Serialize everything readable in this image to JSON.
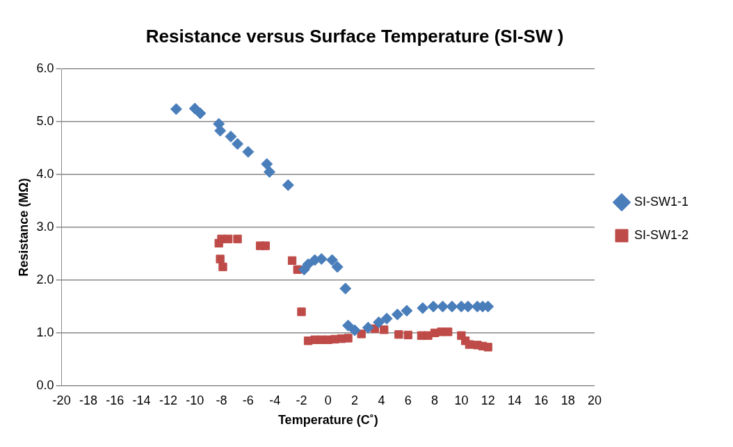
{
  "chart_data": {
    "type": "scatter",
    "title": "Resistance versus Surface Temperature (SI-SW )",
    "xlabel": "Temperature (C˚)",
    "ylabel": "Resistance (MΩ)",
    "xlim": [
      -20,
      20
    ],
    "xticks": [
      -20,
      -18,
      -16,
      -14,
      -12,
      -10,
      -8,
      -6,
      -4,
      -2,
      0,
      2,
      4,
      6,
      8,
      10,
      12,
      14,
      16,
      18,
      20
    ],
    "ylim": [
      0,
      6
    ],
    "yticks": [
      {
        "value": 0,
        "label": "0.0"
      },
      {
        "value": 1,
        "label": "1.0"
      },
      {
        "value": 2,
        "label": "2.0"
      },
      {
        "value": 3,
        "label": "3.0"
      },
      {
        "value": 4,
        "label": "4.0"
      },
      {
        "value": 5,
        "label": "5.0"
      },
      {
        "value": 6,
        "label": "6.0"
      }
    ],
    "grid": "y",
    "legend": "right",
    "series": [
      {
        "name": "SI-SW1-1",
        "color": "#4a7ebb",
        "marker": "diamond",
        "x": [
          -11.4,
          -10,
          -9.6,
          -8.2,
          -8.1,
          -7.3,
          -6.8,
          -6,
          -4.6,
          -4.4,
          -3,
          -1.8,
          -1.5,
          -1,
          -0.5,
          0.3,
          0.5,
          0.7,
          1.3,
          1.5,
          2,
          3,
          3.8,
          4.4,
          5.2,
          5.9,
          7.1,
          7.9,
          8.6,
          9.3,
          10,
          10.5,
          11.2,
          11.6,
          12
        ],
        "values": [
          5.24,
          5.25,
          5.16,
          4.96,
          4.83,
          4.72,
          4.58,
          4.43,
          4.2,
          4.05,
          3.8,
          2.2,
          2.3,
          2.38,
          2.4,
          2.38,
          null,
          2.25,
          1.84,
          1.14,
          1.05,
          1.1,
          1.2,
          1.27,
          1.35,
          1.42,
          1.47,
          1.5,
          1.5,
          1.5,
          1.5,
          1.5,
          1.5,
          1.5,
          1.5
        ]
      },
      {
        "name": "SI-SW1-2",
        "color": "#be4b48",
        "marker": "square",
        "x": [
          -8.2,
          -8,
          -7.5,
          -6.8,
          -8.1,
          -7.9,
          -5.1,
          -4.7,
          -2.7,
          -2.3,
          -2,
          -1.5,
          -1,
          -0.5,
          0,
          0.5,
          1,
          1.5,
          2.5,
          3.5,
          4.2,
          5.3,
          6,
          7,
          7.5,
          8,
          8.5,
          9,
          10,
          10.3,
          10.6,
          11.2,
          11.6,
          12
        ],
        "values": [
          2.7,
          2.78,
          2.78,
          2.78,
          2.4,
          2.25,
          2.65,
          2.65,
          2.37,
          2.2,
          1.4,
          0.85,
          0.87,
          0.87,
          0.87,
          0.88,
          0.89,
          0.9,
          0.98,
          1.08,
          1.06,
          0.97,
          0.96,
          0.95,
          0.95,
          1.0,
          1.02,
          1.02,
          0.95,
          0.85,
          0.78,
          0.77,
          0.75,
          0.73
        ]
      }
    ]
  }
}
